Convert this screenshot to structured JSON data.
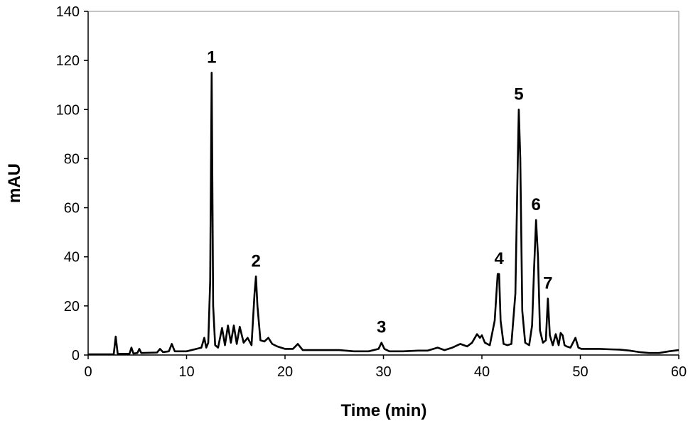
{
  "chart_data": {
    "type": "line",
    "title": "",
    "xlabel": "Time (min)",
    "ylabel": "mAU",
    "xlim": [
      0,
      60
    ],
    "ylim": [
      0,
      140
    ],
    "xticks": [
      0,
      10,
      20,
      30,
      40,
      50,
      60
    ],
    "yticks": [
      0,
      20,
      40,
      60,
      80,
      100,
      120,
      140
    ],
    "grid": false,
    "legend": "none",
    "line_color": "#000000",
    "series": [
      {
        "x": [
          0,
          2.6,
          2.8,
          3.0,
          4.2,
          4.4,
          4.6,
          5.0,
          5.2,
          5.4,
          7.0,
          7.3,
          7.6,
          8.2,
          8.5,
          8.8,
          10.0,
          11.0,
          11.5,
          11.8,
          12.0,
          12.2,
          12.4,
          12.55,
          12.7,
          12.9,
          13.2,
          13.6,
          13.9,
          14.2,
          14.5,
          14.8,
          15.1,
          15.4,
          15.8,
          16.2,
          16.6,
          16.9,
          17.05,
          17.2,
          17.5,
          17.9,
          18.3,
          18.7,
          19.2,
          20.0,
          20.8,
          21.3,
          21.8,
          22.5,
          24.0,
          25.5,
          27.0,
          28.5,
          29.5,
          29.8,
          30.1,
          30.6,
          32.0,
          33.5,
          34.5,
          35.5,
          36.2,
          37.0,
          37.8,
          38.5,
          39.0,
          39.5,
          39.8,
          40.0,
          40.3,
          40.8,
          41.3,
          41.6,
          41.75,
          41.9,
          42.2,
          42.6,
          43.0,
          43.4,
          43.6,
          43.75,
          43.9,
          44.1,
          44.4,
          44.8,
          45.1,
          45.3,
          45.5,
          45.7,
          45.9,
          46.2,
          46.5,
          46.7,
          46.9,
          47.2,
          47.5,
          47.8,
          48.0,
          48.2,
          48.4,
          48.6,
          49.0,
          49.5,
          49.8,
          50.1,
          51.0,
          52.0,
          53.0,
          54.0,
          55.0,
          56.0,
          57.0,
          58.0,
          59.0,
          60.0
        ],
        "y": [
          0.3,
          0.3,
          7.5,
          0.5,
          0.5,
          3.0,
          0.6,
          0.8,
          2.5,
          0.8,
          1.0,
          2.5,
          1.2,
          1.5,
          4.5,
          1.5,
          1.5,
          2.5,
          3.0,
          7.0,
          3.0,
          5.0,
          30.0,
          115.0,
          20.0,
          4.0,
          3.0,
          11.0,
          4.0,
          12.0,
          5.0,
          12.0,
          4.5,
          11.5,
          5.0,
          7.0,
          4.0,
          25.0,
          32.0,
          20.0,
          6.0,
          5.5,
          7.0,
          4.5,
          3.5,
          2.5,
          2.5,
          4.5,
          2.0,
          2.0,
          2.0,
          2.0,
          1.5,
          1.5,
          2.5,
          5.0,
          2.5,
          1.5,
          1.5,
          1.8,
          1.8,
          3.0,
          2.0,
          3.0,
          4.5,
          3.5,
          5.0,
          8.5,
          7.0,
          8.0,
          5.0,
          4.0,
          14.0,
          33.0,
          33.0,
          14.0,
          4.5,
          4.0,
          4.5,
          25.0,
          70.0,
          100.0,
          80.0,
          18.0,
          5.0,
          4.0,
          12.0,
          35.0,
          55.0,
          40.0,
          10.0,
          5.0,
          6.0,
          23.0,
          8.0,
          4.0,
          8.5,
          4.0,
          9.0,
          8.0,
          4.0,
          3.5,
          3.0,
          7.0,
          3.0,
          2.5,
          2.5,
          2.5,
          2.3,
          2.2,
          1.8,
          1.2,
          0.8,
          0.8,
          1.5,
          2.0
        ]
      }
    ],
    "annotations": [
      {
        "text": "1",
        "x": 12.55,
        "y": 115
      },
      {
        "text": "2",
        "x": 17.05,
        "y": 32
      },
      {
        "text": "3",
        "x": 29.8,
        "y": 5
      },
      {
        "text": "4",
        "x": 41.75,
        "y": 33
      },
      {
        "text": "5",
        "x": 43.75,
        "y": 100
      },
      {
        "text": "6",
        "x": 45.5,
        "y": 55
      },
      {
        "text": "7",
        "x": 46.7,
        "y": 23
      }
    ]
  }
}
